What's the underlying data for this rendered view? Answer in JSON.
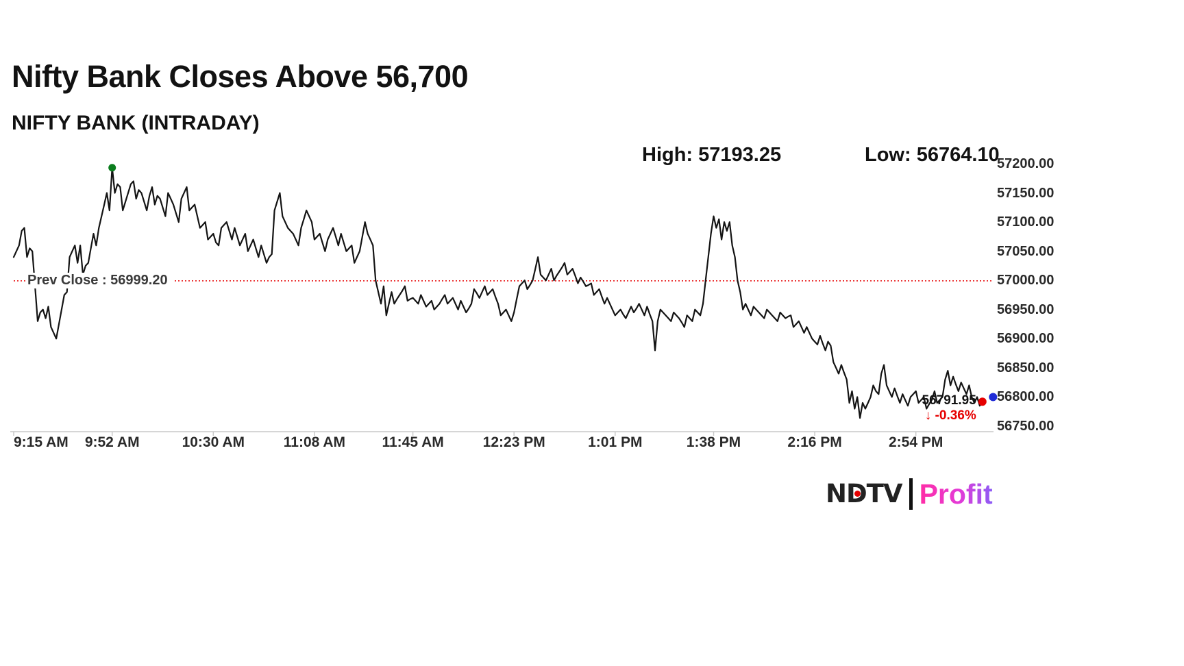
{
  "header": {
    "title": "Nifty Bank Closes Above 56,700",
    "subtitle": "NIFTY BANK (INTRADAY)"
  },
  "stats": {
    "high_label": "High: 57193.25",
    "low_label": "Low: 56764.10",
    "high_value": 57193.25,
    "low_value": 56764.1
  },
  "prev_close": {
    "label": "Prev Close : 56999.20",
    "value": 56999.2
  },
  "last_trade": {
    "price_label": "56791.95",
    "change_label": "↓ -0.36%",
    "value": 56791.95,
    "change_pct": -0.36
  },
  "branding": {
    "ndtv": "NDTV",
    "profit": "Profit"
  },
  "colors": {
    "line": "#141414",
    "prev_close_line": "#e60000",
    "change_down": "#e60000",
    "high_dot": "#0b7d1e",
    "close_dot": "#e60000",
    "last_dot": "#1f2bd6",
    "axis": "#c9c9c9",
    "ndtv_dot": "#e60000"
  },
  "chart_data": {
    "type": "line",
    "title": "NIFTY BANK (INTRADAY)",
    "xlabel": "",
    "ylabel": "",
    "x_unit": "minutes since 9:15 AM",
    "x_start": "9:15 AM",
    "x_step_minutes": 1,
    "x_tick_labels": [
      "9:15 AM",
      "9:52 AM",
      "10:30 AM",
      "11:08 AM",
      "11:45 AM",
      "12:23 PM",
      "1:01 PM",
      "1:38 PM",
      "2:16 PM",
      "2:54 PM"
    ],
    "x_tick_minutes": [
      0,
      37,
      75,
      113,
      150,
      188,
      226,
      263,
      301,
      339
    ],
    "y_ticks": [
      57200,
      57150,
      57100,
      57050,
      57000,
      56950,
      56900,
      56850,
      56800,
      56750
    ],
    "ylim": [
      56740,
      57213
    ],
    "grid": false,
    "legend": false,
    "prev_close": 56999.2,
    "high": {
      "minute": 37,
      "value": 57193.25
    },
    "low": {
      "minute": 318,
      "value": 56764.1
    },
    "close": {
      "minute": 364,
      "value": 56791.95
    },
    "last_dot": {
      "value": 56800,
      "offset_minutes": 4
    },
    "values": [
      57040,
      57050,
      57060,
      57085,
      57090,
      57040,
      57055,
      57050,
      56990,
      56930,
      56945,
      56950,
      56935,
      56955,
      56920,
      56910,
      56900,
      56925,
      56950,
      56975,
      56980,
      57040,
      57050,
      57060,
      57030,
      57060,
      57010,
      57025,
      57030,
      57055,
      57080,
      57060,
      57090,
      57110,
      57130,
      57150,
      57120,
      57193.25,
      57150,
      57165,
      57160,
      57120,
      57135,
      57150,
      57165,
      57170,
      57140,
      57155,
      57150,
      57135,
      57120,
      57145,
      57160,
      57130,
      57145,
      57140,
      57125,
      57110,
      57150,
      57140,
      57130,
      57115,
      57100,
      57140,
      57150,
      57160,
      57120,
      57125,
      57130,
      57110,
      57090,
      57095,
      57100,
      57070,
      57075,
      57080,
      57065,
      57060,
      57090,
      57095,
      57100,
      57085,
      57070,
      57090,
      57075,
      57060,
      57070,
      57080,
      57050,
      57060,
      57070,
      57055,
      57040,
      57060,
      57045,
      57030,
      57040,
      57045,
      57120,
      57135,
      57150,
      57110,
      57100,
      57090,
      57085,
      57080,
      57070,
      57060,
      57090,
      57105,
      57120,
      57110,
      57100,
      57070,
      57075,
      57080,
      57065,
      57050,
      57070,
      57080,
      57090,
      57075,
      57060,
      57080,
      57065,
      57050,
      57055,
      57060,
      57030,
      57040,
      57050,
      57075,
      57100,
      57080,
      57070,
      57060,
      57000,
      56980,
      56960,
      56990,
      56940,
      56960,
      56980,
      56960,
      56968,
      56975,
      56982,
      56990,
      56965,
      56968,
      56970,
      56965,
      56960,
      56975,
      56965,
      56955,
      56960,
      56965,
      56950,
      56955,
      56960,
      56968,
      56975,
      56960,
      56965,
      56970,
      56960,
      56950,
      56965,
      56955,
      56945,
      56952,
      56960,
      56985,
      56978,
      56970,
      56980,
      56990,
      56975,
      56980,
      56985,
      56972,
      56960,
      56940,
      56945,
      56950,
      56940,
      56930,
      56945,
      56968,
      56990,
      56995,
      57000,
      56985,
      56992,
      57000,
      57020,
      57040,
      57010,
      57005,
      57000,
      57010,
      57020,
      57000,
      57008,
      57015,
      57022,
      57030,
      57010,
      57015,
      57020,
      57008,
      56995,
      57005,
      56998,
      56990,
      56992,
      56995,
      56975,
      56980,
      56985,
      56972,
      56960,
      56970,
      56960,
      56950,
      56940,
      56945,
      56950,
      56942,
      56935,
      56945,
      56955,
      56945,
      56952,
      56960,
      56950,
      56940,
      56955,
      56942,
      56930,
      56880,
      56930,
      56950,
      56945,
      56940,
      56935,
      56930,
      56945,
      56940,
      56935,
      56928,
      56920,
      56940,
      56935,
      56930,
      56950,
      56945,
      56940,
      56960,
      57000,
      57040,
      57080,
      57110,
      57090,
      57105,
      57070,
      57100,
      57085,
      57100,
      57060,
      57040,
      57000,
      56980,
      56950,
      56960,
      56950,
      56940,
      56955,
      56950,
      56945,
      56940,
      56935,
      56950,
      56945,
      56940,
      56935,
      56930,
      56945,
      56940,
      56935,
      56938,
      56940,
      56920,
      56925,
      56930,
      56920,
      56910,
      56920,
      56910,
      56900,
      56895,
      56890,
      56905,
      56892,
      56880,
      56895,
      56888,
      56860,
      56850,
      56840,
      56855,
      56842,
      56830,
      56790,
      56810,
      56780,
      56800,
      56764.1,
      56790,
      56780,
      56790,
      56800,
      56820,
      56810,
      56805,
      56840,
      56855,
      56820,
      56810,
      56800,
      56815,
      56802,
      56790,
      56805,
      56795,
      56785,
      56800,
      56805,
      56810,
      56790,
      56795,
      56800,
      56780,
      56788,
      56795,
      56810,
      56790,
      56795,
      56800,
      56830,
      56845,
      56820,
      56835,
      56822,
      56810,
      56825,
      56815,
      56805,
      56820,
      56800,
      56790,
      56800,
      56785,
      56791.95
    ]
  }
}
